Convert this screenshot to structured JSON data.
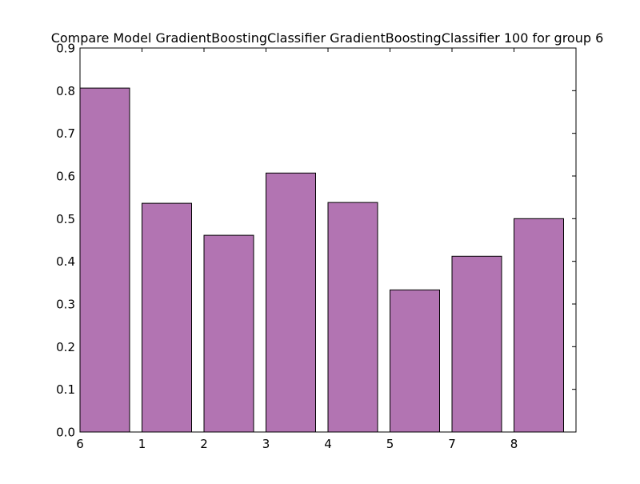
{
  "chart_data": {
    "type": "bar",
    "title": "Compare Model GradientBoostingClassifier GradientBoostingClassifier 100 for group 6",
    "xlabel": "",
    "ylabel": "",
    "categories": [
      "6",
      "1",
      "2",
      "3",
      "4",
      "5",
      "7",
      "8"
    ],
    "values": [
      0.806,
      0.536,
      0.461,
      0.607,
      0.538,
      0.333,
      0.412,
      0.5
    ],
    "ylim": [
      0,
      0.9
    ],
    "yticks": [
      "0.0",
      "0.1",
      "0.2",
      "0.3",
      "0.4",
      "0.5",
      "0.6",
      "0.7",
      "0.8",
      "0.9"
    ],
    "bar_color": "#b274b2",
    "edge_color": "#000000",
    "grid": false,
    "legend": "none"
  }
}
